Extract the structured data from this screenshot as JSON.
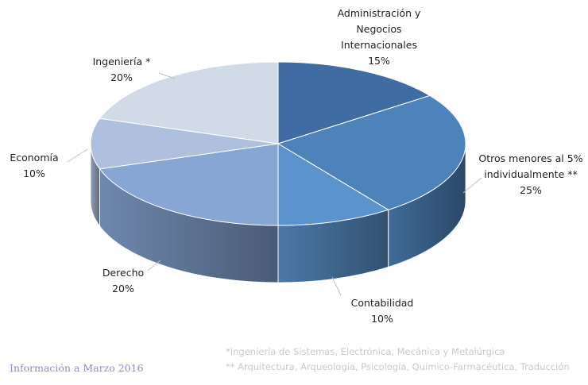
{
  "chart_data": {
    "type": "pie",
    "style": "3d",
    "slices": [
      {
        "label_lines": [
          "Administración y",
          "Negocios",
          "Internacionales"
        ],
        "value": 15,
        "value_label": "15%",
        "color": "#3f6da3"
      },
      {
        "label_lines": [
          "Otros menores al 5%",
          "individualmente **"
        ],
        "value": 25,
        "value_label": "25%",
        "color": "#4e82bb"
      },
      {
        "label_lines": [
          "Contabilidad"
        ],
        "value": 10,
        "value_label": "10%",
        "color": "#5b93cc"
      },
      {
        "label_lines": [
          "Derecho"
        ],
        "value": 20,
        "value_label": "20%",
        "color": "#87a6d4"
      },
      {
        "label_lines": [
          "Economía"
        ],
        "value": 10,
        "value_label": "10%",
        "color": "#aec0dd"
      },
      {
        "label_lines": [
          "Ingeniería *"
        ],
        "value": 20,
        "value_label": "20%",
        "color": "#d1dbe8"
      }
    ]
  },
  "footnotes": {
    "note1": "*Ingeniería de Sistemas, Electrónica, Mecánica y Metalúrgica",
    "note2": "** Arquitectura, Arqueología, Psicología, Químico-Farmacéutica, Traducción"
  },
  "source": "Información a Marzo 2016"
}
